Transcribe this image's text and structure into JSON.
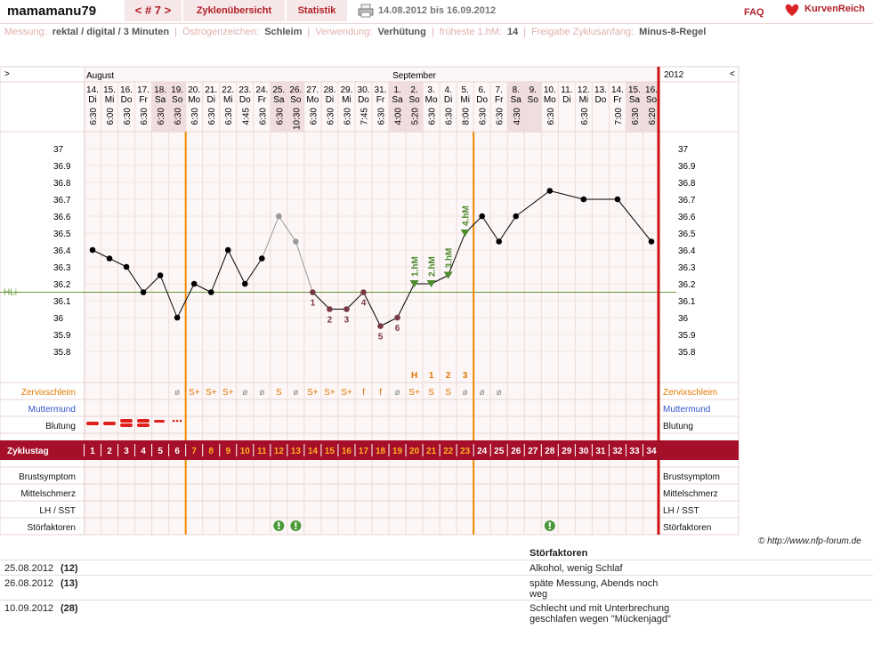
{
  "header": {
    "user": "mamamanu79",
    "cycle_nav": "< # 7 >",
    "tabs": [
      "Zyklenübersicht",
      "Statistik"
    ],
    "date_range": "14.08.2012 bis 16.09.2012",
    "faq": "FAQ",
    "brand": "KurvenReich"
  },
  "settings": [
    {
      "label": "Messung:",
      "value": "rektal / digital / 3 Minuten"
    },
    {
      "label": "Östrogenzeichen:",
      "value": "Schleim"
    },
    {
      "label": "Verwendung:",
      "value": "Verhütung"
    },
    {
      "label": "früheste 1.hM:",
      "value": "14"
    },
    {
      "label": "Freigabe Zyklusanfang:",
      "value": "Minus-8-Regel"
    }
  ],
  "chart_data": {
    "type": "line",
    "nav_left": ">",
    "nav_right": "<",
    "year": "2012",
    "months": [
      "August",
      "September"
    ],
    "columns": [
      {
        "day": "14.",
        "weekday": "Di",
        "time": "6:30",
        "weekend": false
      },
      {
        "day": "15.",
        "weekday": "Mi",
        "time": "6:00",
        "weekend": false
      },
      {
        "day": "16.",
        "weekday": "Do",
        "time": "6:30",
        "weekend": false
      },
      {
        "day": "17.",
        "weekday": "Fr",
        "time": "6:30",
        "weekend": false
      },
      {
        "day": "18.",
        "weekday": "Sa",
        "time": "6:30",
        "weekend": true
      },
      {
        "day": "19.",
        "weekday": "So",
        "time": "6:30",
        "weekend": true
      },
      {
        "day": "20.",
        "weekday": "Mo",
        "time": "6:30",
        "weekend": false
      },
      {
        "day": "21.",
        "weekday": "Di",
        "time": "6:30",
        "weekend": false
      },
      {
        "day": "22.",
        "weekday": "Mi",
        "time": "6:30",
        "weekend": false
      },
      {
        "day": "23.",
        "weekday": "Do",
        "time": "4:45",
        "weekend": false
      },
      {
        "day": "24.",
        "weekday": "Fr",
        "time": "6:30",
        "weekend": false
      },
      {
        "day": "25.",
        "weekday": "Sa",
        "time": "6:30",
        "weekend": true
      },
      {
        "day": "26.",
        "weekday": "So",
        "time": "10:30",
        "weekend": true
      },
      {
        "day": "27.",
        "weekday": "Mo",
        "time": "6:30",
        "weekend": false
      },
      {
        "day": "28.",
        "weekday": "Di",
        "time": "6:30",
        "weekend": false
      },
      {
        "day": "29.",
        "weekday": "Mi",
        "time": "6:30",
        "weekend": false
      },
      {
        "day": "30.",
        "weekday": "Do",
        "time": "7:45",
        "weekend": false
      },
      {
        "day": "31.",
        "weekday": "Fr",
        "time": "6:30",
        "weekend": false
      },
      {
        "day": "1.",
        "weekday": "Sa",
        "time": "4:00",
        "weekend": true
      },
      {
        "day": "2.",
        "weekday": "So",
        "time": "5:20",
        "weekend": true
      },
      {
        "day": "3.",
        "weekday": "Mo",
        "time": "6:30",
        "weekend": false
      },
      {
        "day": "4.",
        "weekday": "Di",
        "time": "6:30",
        "weekend": false
      },
      {
        "day": "5.",
        "weekday": "Mi",
        "time": "8:00",
        "weekend": false
      },
      {
        "day": "6.",
        "weekday": "Do",
        "time": "6:30",
        "weekend": false
      },
      {
        "day": "7.",
        "weekday": "Fr",
        "time": "6:30",
        "weekend": false
      },
      {
        "day": "8.",
        "weekday": "Sa",
        "time": "4:30",
        "weekend": true
      },
      {
        "day": "9.",
        "weekday": "So",
        "time": null,
        "weekend": true
      },
      {
        "day": "10.",
        "weekday": "Mo",
        "time": "6:30",
        "weekend": false
      },
      {
        "day": "11.",
        "weekday": "Di",
        "time": null,
        "weekend": false
      },
      {
        "day": "12.",
        "weekday": "Mi",
        "time": "6:30",
        "weekend": false
      },
      {
        "day": "13.",
        "weekday": "Do",
        "time": null,
        "weekend": false
      },
      {
        "day": "14.",
        "weekday": "Fr",
        "time": "7:00",
        "weekend": false
      },
      {
        "day": "15.",
        "weekday": "Sa",
        "time": "6:30",
        "weekend": true
      },
      {
        "day": "16.",
        "weekday": "So",
        "time": "6:20",
        "weekend": true
      }
    ],
    "x": [
      1,
      2,
      3,
      4,
      5,
      6,
      7,
      8,
      9,
      10,
      11,
      12,
      13,
      14,
      15,
      16,
      17,
      18,
      19,
      20,
      21,
      22,
      23,
      24,
      25,
      26,
      28,
      30,
      32,
      34
    ],
    "values": [
      36.4,
      36.35,
      36.3,
      36.15,
      36.25,
      36.0,
      36.2,
      36.15,
      36.4,
      36.2,
      36.35,
      36.6,
      36.45,
      36.15,
      36.05,
      36.05,
      36.15,
      35.95,
      36.0,
      36.2,
      36.2,
      36.25,
      36.5,
      36.6,
      36.45,
      36.6,
      36.75,
      36.7,
      36.7,
      36.45
    ],
    "ylim": [
      35.8,
      37
    ],
    "yticks": [
      37,
      36.9,
      36.8,
      36.7,
      36.6,
      36.5,
      36.4,
      36.3,
      36.2,
      36.1,
      36,
      35.9,
      35.8
    ],
    "grid": true,
    "line_color": "#000000",
    "excluded_days": [
      12,
      13
    ],
    "excluded_color": "#999999",
    "lower_six": {
      "days": [
        14,
        15,
        16,
        17,
        18,
        19
      ],
      "labels": [
        "1",
        "2",
        "3",
        "4",
        "5",
        "6"
      ],
      "color": "#7a3a45"
    },
    "high_measurements": {
      "days": [
        20,
        21,
        22,
        23
      ],
      "labels": [
        "1.hM",
        "2.hM",
        "3.hM",
        "4.hM"
      ],
      "color": "#4e8a2e"
    },
    "coverline": {
      "label": "HLi",
      "value": 36.15,
      "color": "#6a9a3a"
    },
    "phase_boundaries": [
      6,
      23
    ],
    "row_labels": {
      "mucus": "Zervixschleim",
      "cervix": "Muttermund",
      "bleeding": "Blutung",
      "cycle_day": "Zyklustag",
      "breast": "Brustsymptom",
      "midpain": "Mittelschmerz",
      "lh": "LH / SST",
      "disturbance": "Störfaktoren"
    },
    "mucus": [
      null,
      null,
      null,
      null,
      null,
      "ø",
      "S+",
      "S+",
      "S+",
      "ø",
      "ø",
      "S",
      "ø",
      "S+",
      "S+",
      "S+",
      "f",
      "f",
      "ø",
      "S+",
      "S",
      "S",
      "ø",
      "ø",
      "ø",
      null,
      null,
      null,
      null,
      null,
      null,
      null,
      null,
      null
    ],
    "mucus_peak": {
      "days": [
        20,
        21,
        22,
        23
      ],
      "labels": [
        "H",
        "1",
        "2",
        "3"
      ]
    },
    "cycle_days": [
      1,
      2,
      3,
      4,
      5,
      6,
      7,
      8,
      9,
      10,
      11,
      12,
      13,
      14,
      15,
      16,
      17,
      18,
      19,
      20,
      21,
      22,
      23,
      24,
      25,
      26,
      27,
      28,
      29,
      30,
      31,
      32,
      33,
      34
    ],
    "disturbance_days": [
      12,
      13,
      28
    ]
  },
  "footer": {
    "copyright": "© http://www.nfp-forum.de"
  },
  "table": {
    "header": "Störfaktoren",
    "rows": [
      {
        "date": "25.08.2012",
        "day": "(12)",
        "text": "Alkohol, wenig Schlaf"
      },
      {
        "date": "26.08.2012",
        "day": "(13)",
        "text": "späte Messung, Abends noch weg"
      },
      {
        "date": "10.09.2012",
        "day": "(28)",
        "text": "Schlecht und mit Unterbrechung geschlafen wegen \"Mückenjagd\""
      }
    ]
  }
}
